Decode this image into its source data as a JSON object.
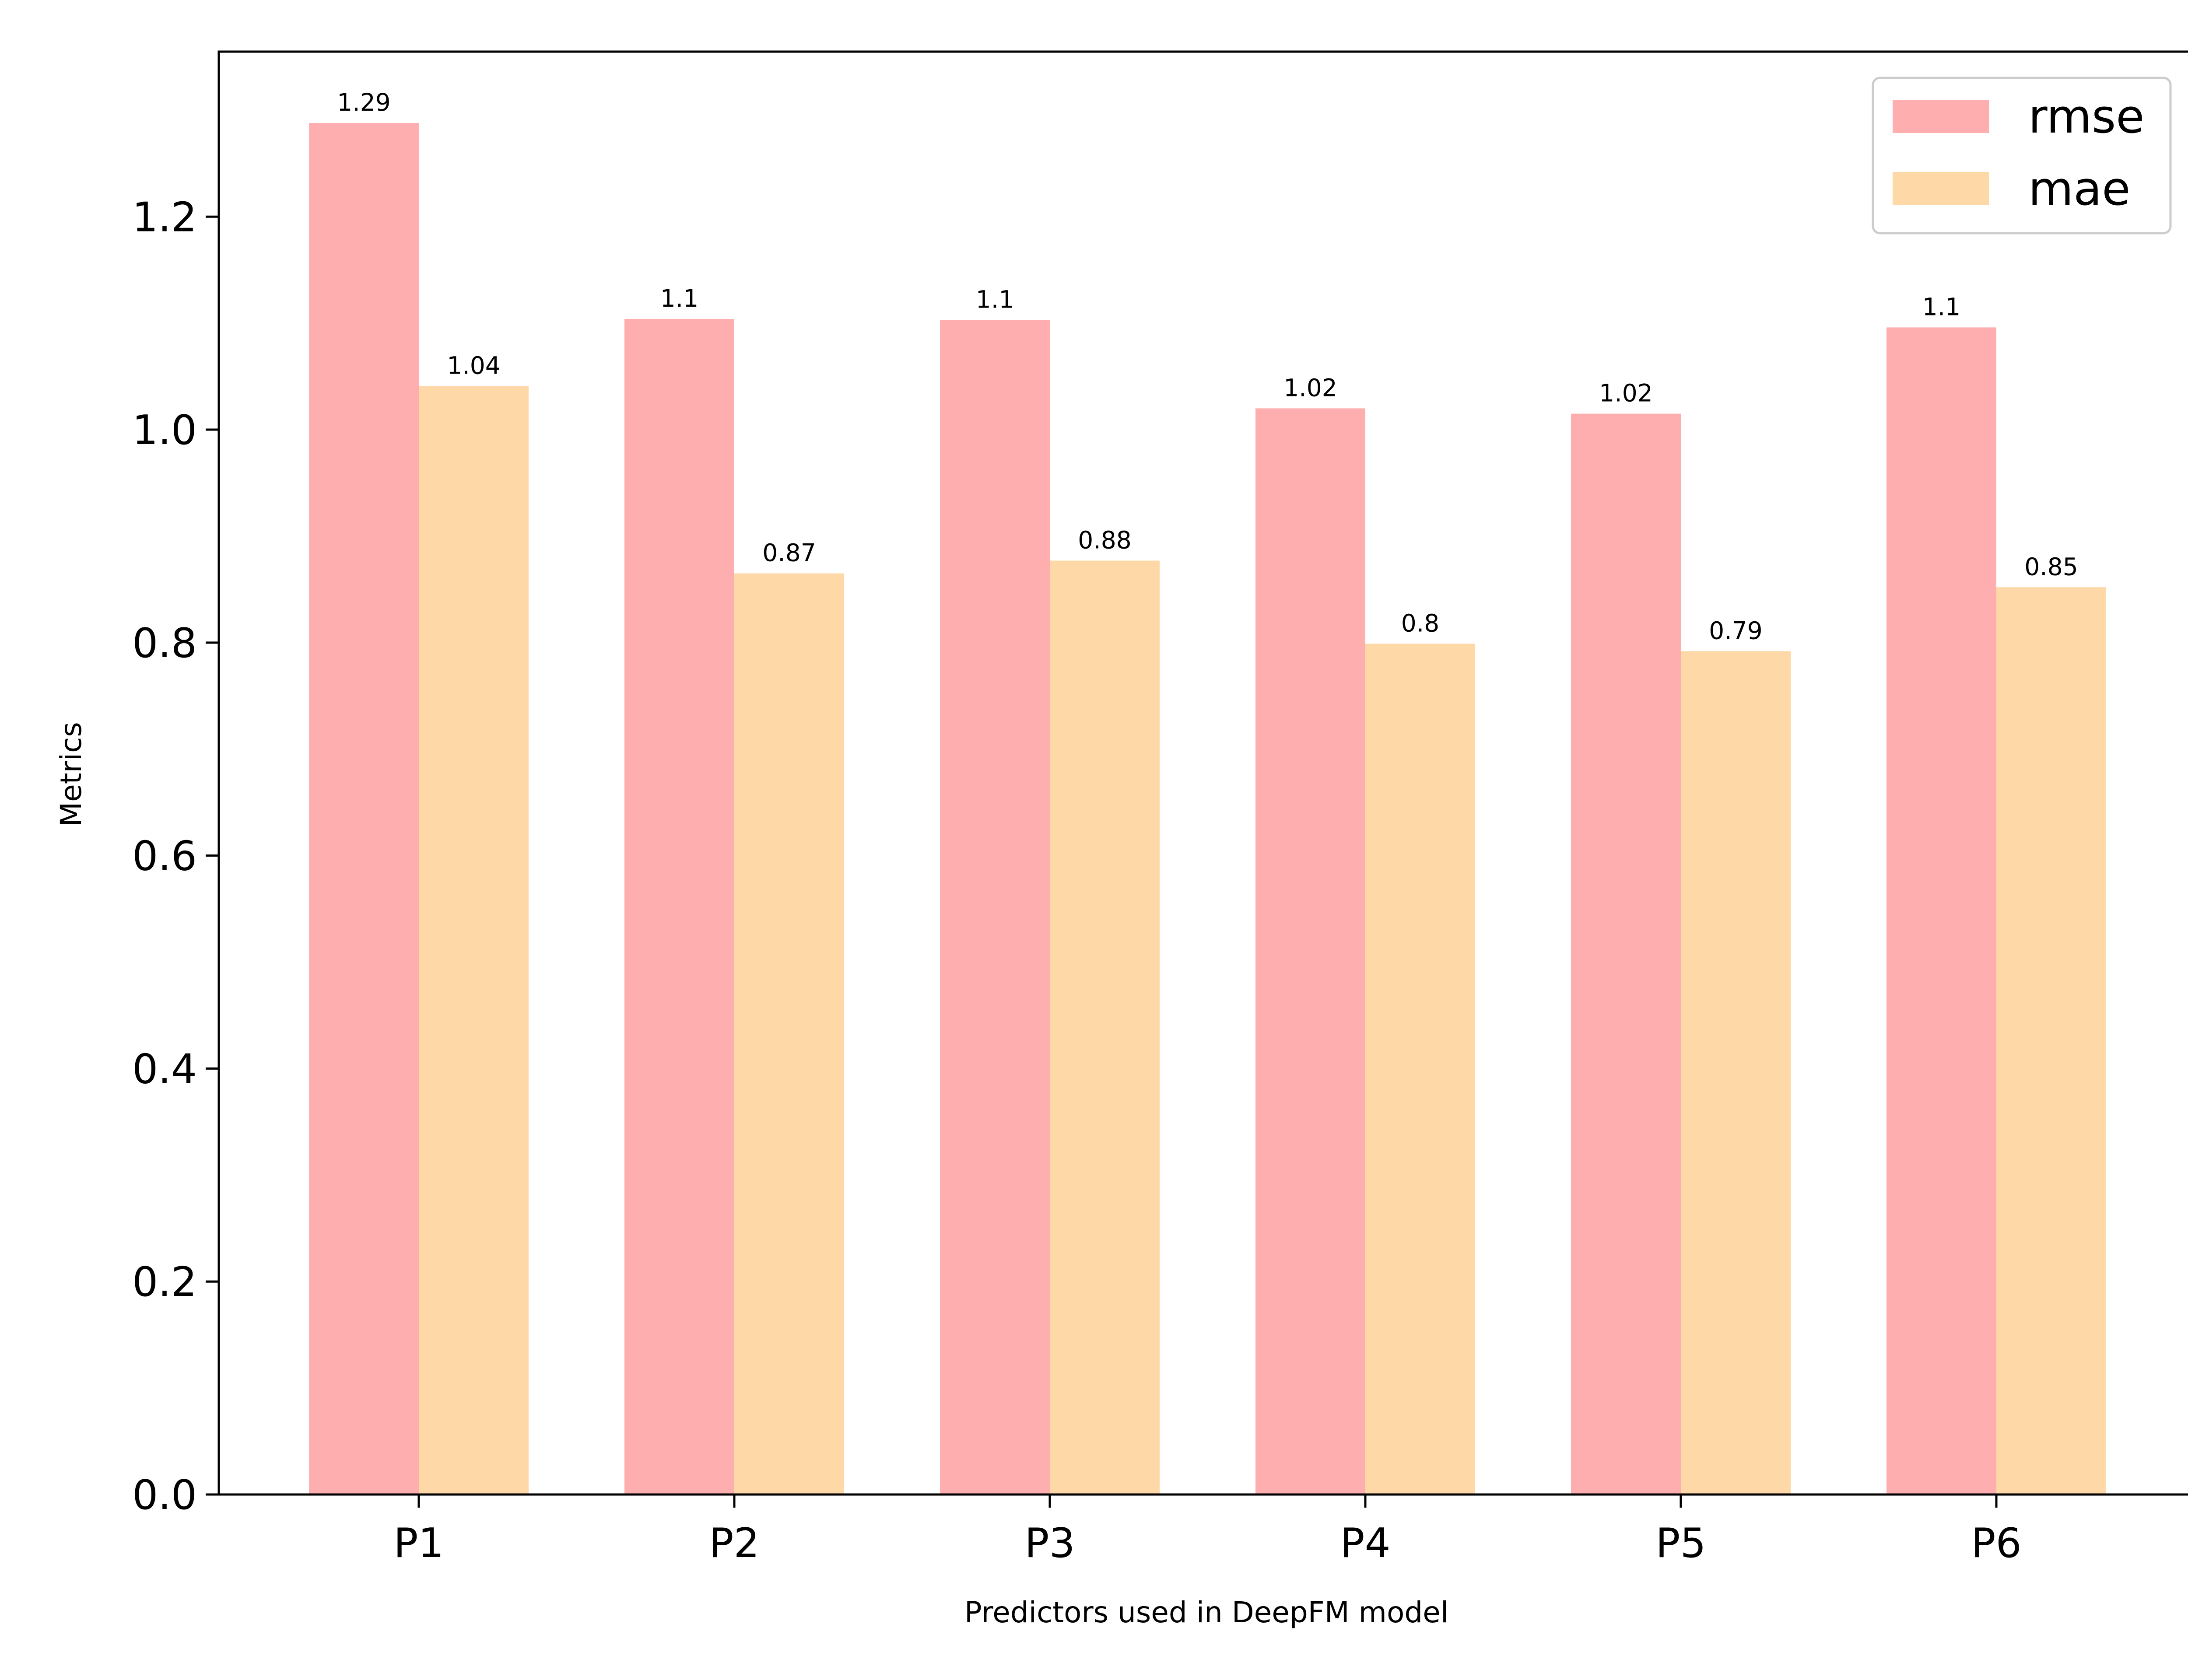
{
  "chart_data": {
    "type": "bar",
    "categories": [
      "P1",
      "P2",
      "P3",
      "P4",
      "P5",
      "P6"
    ],
    "series": [
      {
        "name": "rmse",
        "color": "#ffaeb0",
        "values": [
          1.288,
          1.104,
          1.103,
          1.02,
          1.015,
          1.096
        ],
        "labels": [
          "1.29",
          "1.1",
          "1.1",
          "1.02",
          "1.02",
          "1.1"
        ]
      },
      {
        "name": "mae",
        "color": "#ffd8a8",
        "values": [
          1.041,
          0.865,
          0.877,
          0.799,
          0.792,
          0.852
        ],
        "labels": [
          "1.04",
          "0.87",
          "0.88",
          "0.8",
          "0.79",
          "0.85"
        ]
      }
    ],
    "title": "",
    "xlabel": "Predictors used in DeepFM model",
    "ylabel": "Metrics",
    "ylim": [
      0,
      1.355
    ],
    "yticks": [
      0.0,
      0.2,
      0.4,
      0.6,
      0.8,
      1.0,
      1.2
    ],
    "ytick_labels": [
      "0.0",
      "0.2",
      "0.4",
      "0.6",
      "0.8",
      "1.0",
      "1.2"
    ],
    "grid": false,
    "legend": "top-right"
  }
}
